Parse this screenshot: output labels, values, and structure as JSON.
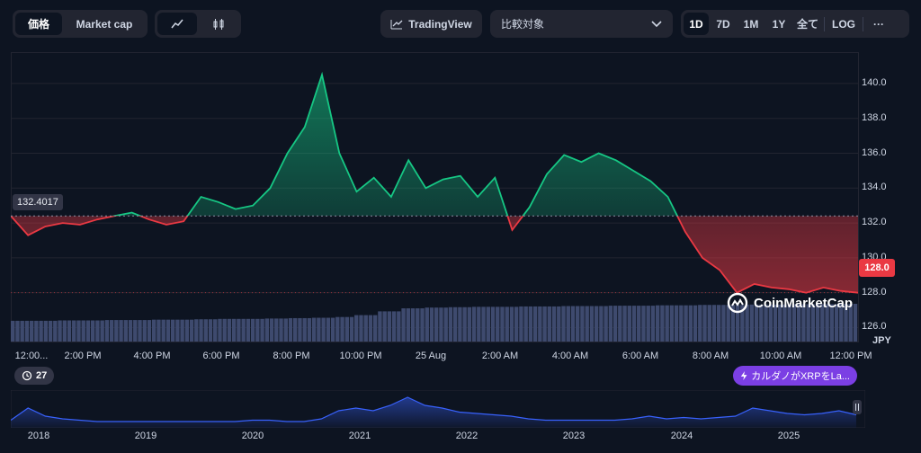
{
  "tabs": {
    "price": "価格",
    "market_cap": "Market cap"
  },
  "chart_type_icons": [
    "line-chart-icon",
    "candle-chart-icon"
  ],
  "tradingview_label": "TradingView",
  "compare": {
    "label": "比較対象"
  },
  "ranges": [
    "1D",
    "7D",
    "1M",
    "1Y",
    "全て"
  ],
  "active_range": "1D",
  "log_label": "LOG",
  "more_label": "···",
  "open_price_label": "132.4017",
  "last_price_label": "128.0",
  "currency_unit": "JPY",
  "watermark": "CoinMarketCap",
  "history_count": "27",
  "news_label": "カルダノがXRPをLa...",
  "colors": {
    "up": "#16c784",
    "down": "#ea3943",
    "volume": "#3e4a6e",
    "accent": "#7b3fe4"
  },
  "chart_data": {
    "type": "area",
    "y_ticks": [
      "140.0",
      "138.0",
      "136.0",
      "134.0",
      "132.0",
      "130.0",
      "128.0",
      "126.0"
    ],
    "ylim": [
      125.2,
      141.8
    ],
    "baseline": 132.4017,
    "x_ticks": [
      "12:00...",
      "2:00 PM",
      "4:00 PM",
      "6:00 PM",
      "8:00 PM",
      "10:00 PM",
      "25 Aug",
      "2:00 AM",
      "4:00 AM",
      "6:00 AM",
      "8:00 AM",
      "10:00 AM",
      "12:00 PM"
    ],
    "series": [
      {
        "x": [
          0,
          0.5,
          1,
          1.5,
          2,
          2.5,
          3,
          3.5,
          4,
          4.5,
          5,
          5.5,
          6,
          6.5,
          7,
          7.5,
          8,
          8.5,
          9,
          9.5,
          10,
          10.5,
          11,
          11.5,
          12,
          12.5,
          13,
          13.5,
          14,
          14.5,
          15,
          15.5,
          16,
          16.5,
          17,
          17.5,
          18,
          18.5,
          19,
          19.5,
          20,
          20.5,
          21,
          21.5,
          22,
          22.5,
          23,
          23.5,
          24,
          24.5
        ],
        "y": [
          132.4,
          131.3,
          131.8,
          132.0,
          131.9,
          132.2,
          132.4,
          132.6,
          132.2,
          131.9,
          132.1,
          133.5,
          133.2,
          132.8,
          133.0,
          134.0,
          136.0,
          137.5,
          140.5,
          136.0,
          133.8,
          134.6,
          133.5,
          135.6,
          134.0,
          134.5,
          134.7,
          133.5,
          134.6,
          131.6,
          132.9,
          134.8,
          135.9,
          135.5,
          136.0,
          135.6,
          135.0,
          134.4,
          133.5,
          131.5,
          130.0,
          129.3,
          128.0,
          128.5,
          128.3,
          128.2,
          128.0,
          128.3,
          128.1,
          128.0
        ]
      }
    ]
  },
  "volume_profile": [
    0.55,
    0.55,
    0.56,
    0.56,
    0.57,
    0.57,
    0.58,
    0.58,
    0.59,
    0.6,
    0.6,
    0.61,
    0.62,
    0.63,
    0.65,
    0.7,
    0.8,
    0.88,
    0.9,
    0.91,
    0.92,
    0.92,
    0.93,
    0.93,
    0.94,
    0.94,
    0.95,
    0.95,
    0.96,
    0.96,
    0.97,
    0.97,
    0.98,
    0.98,
    0.99,
    0.99,
    1.0
  ],
  "mini_chart": {
    "years": [
      "2018",
      "2019",
      "2020",
      "2021",
      "2022",
      "2023",
      "2024",
      "2025"
    ],
    "values": [
      0.15,
      0.6,
      0.3,
      0.2,
      0.15,
      0.1,
      0.1,
      0.1,
      0.1,
      0.1,
      0.1,
      0.1,
      0.1,
      0.1,
      0.15,
      0.15,
      0.1,
      0.1,
      0.2,
      0.5,
      0.6,
      0.5,
      0.7,
      1.0,
      0.7,
      0.6,
      0.45,
      0.4,
      0.35,
      0.3,
      0.2,
      0.15,
      0.15,
      0.15,
      0.15,
      0.15,
      0.2,
      0.3,
      0.2,
      0.25,
      0.2,
      0.25,
      0.3,
      0.6,
      0.5,
      0.4,
      0.35,
      0.4,
      0.5,
      0.35
    ]
  }
}
